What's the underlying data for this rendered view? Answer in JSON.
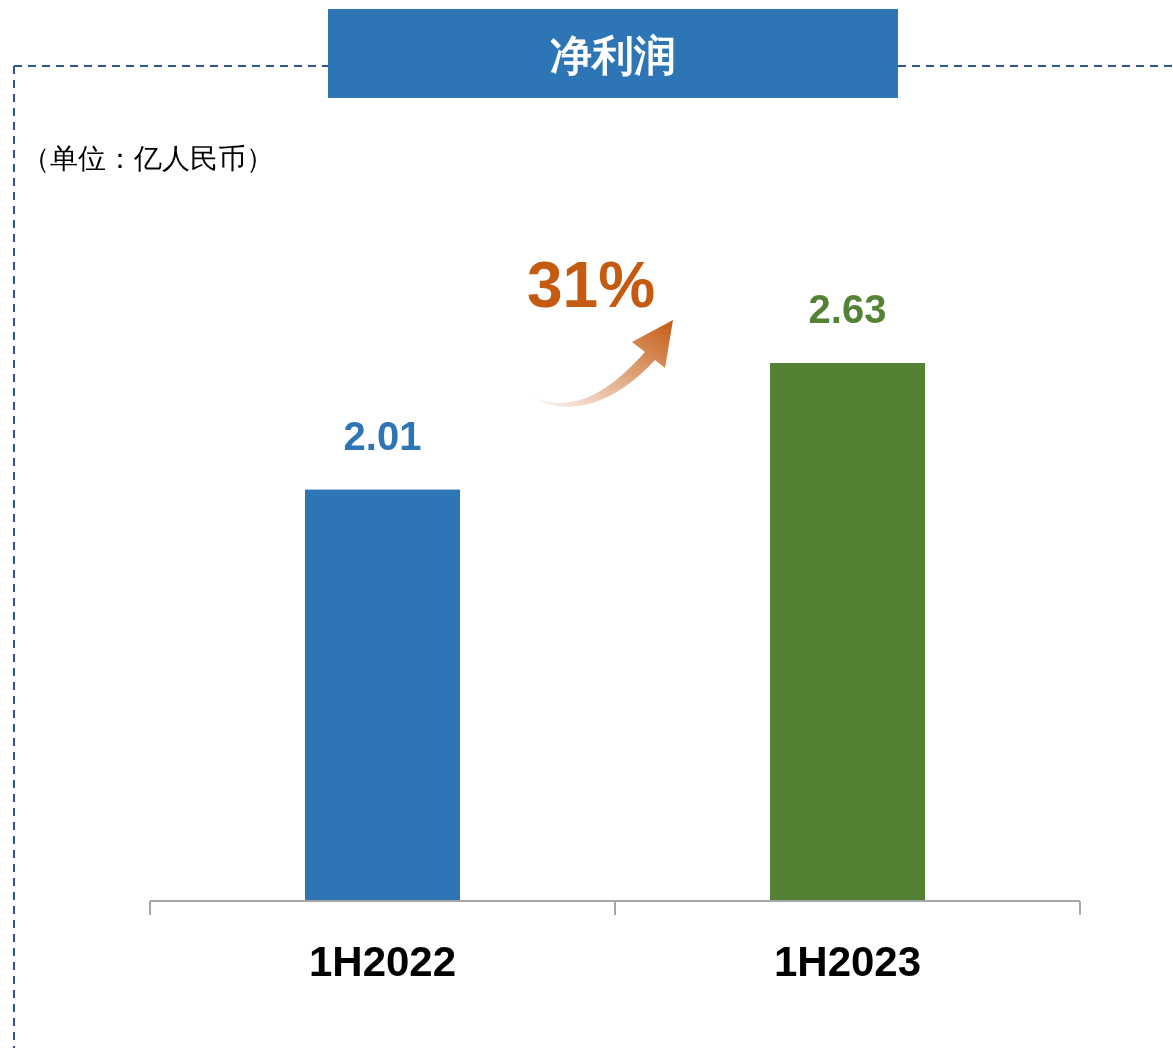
{
  "chart_data": {
    "type": "bar",
    "title": "净利润",
    "annotations": [
      "（单位：亿人民币）",
      "31%"
    ],
    "categories": [
      "1H2022",
      "1H2023"
    ],
    "values": [
      2.01,
      2.63
    ],
    "colors": [
      "#2e75b6",
      "#548235"
    ],
    "data_labels": true
  }
}
